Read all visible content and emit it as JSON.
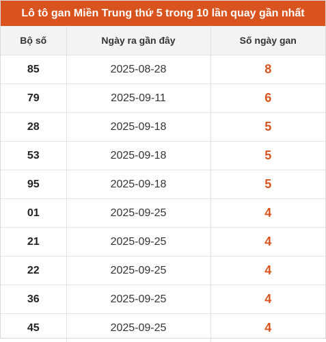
{
  "title": "Lô tô gan Miền Trung thứ 5 trong 10 lần quay gần nhất",
  "headers": {
    "number": "Bộ số",
    "last_date": "Ngày ra gần đây",
    "days_gan": "Số ngày gan"
  },
  "colors": {
    "title_bg": "#d9531e",
    "accent_value": "#d9531e",
    "header_bg": "#f3f3f3"
  },
  "rows": [
    {
      "number": "85",
      "last_date": "2025-08-28",
      "days_gan": "8"
    },
    {
      "number": "79",
      "last_date": "2025-09-11",
      "days_gan": "6"
    },
    {
      "number": "28",
      "last_date": "2025-09-18",
      "days_gan": "5"
    },
    {
      "number": "53",
      "last_date": "2025-09-18",
      "days_gan": "5"
    },
    {
      "number": "95",
      "last_date": "2025-09-18",
      "days_gan": "5"
    },
    {
      "number": "01",
      "last_date": "2025-09-25",
      "days_gan": "4"
    },
    {
      "number": "21",
      "last_date": "2025-09-25",
      "days_gan": "4"
    },
    {
      "number": "22",
      "last_date": "2025-09-25",
      "days_gan": "4"
    },
    {
      "number": "36",
      "last_date": "2025-09-25",
      "days_gan": "4"
    },
    {
      "number": "45",
      "last_date": "2025-09-25",
      "days_gan": "4"
    }
  ]
}
